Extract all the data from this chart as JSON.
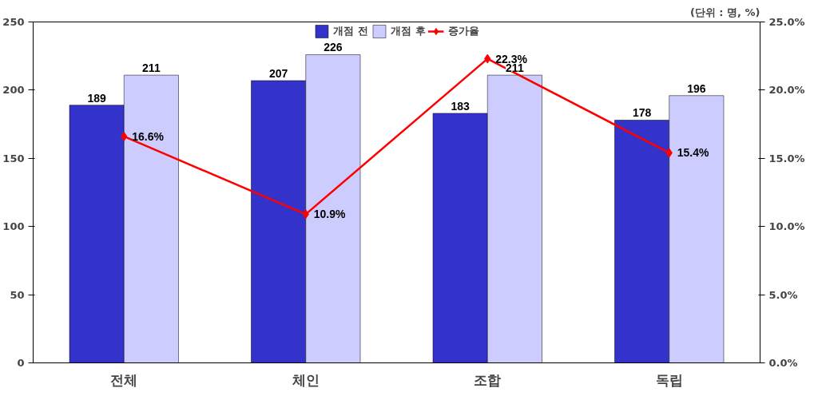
{
  "chart_data": {
    "type": "bar",
    "annotations": [
      "(단위 : 명, %)"
    ],
    "categories": [
      "전체",
      "체인",
      "조합",
      "독립"
    ],
    "series": [
      {
        "name": "개점 전",
        "color": "#3333cc",
        "values": [
          189,
          207,
          183,
          178
        ]
      },
      {
        "name": "개점 후",
        "color": "#ccccff",
        "values": [
          211,
          226,
          211,
          196
        ]
      },
      {
        "name": "증가율",
        "type": "line",
        "axis": "y2",
        "color": "#ff0000",
        "marker": "diamond",
        "values": [
          16.6,
          10.9,
          22.3,
          15.4
        ],
        "value_labels": [
          "16.6%",
          "10.9%",
          "22.3%",
          "15.4%"
        ]
      }
    ],
    "data_labels": true,
    "ylim": [
      0,
      250
    ],
    "yticks": [
      0,
      50,
      100,
      150,
      200,
      250
    ],
    "y2lim": [
      0,
      25
    ],
    "y2ticks": [
      {
        "value": 0,
        "label": "0.0%"
      },
      {
        "value": 5,
        "label": "5.0%"
      },
      {
        "value": 10,
        "label": "10.0%"
      },
      {
        "value": 15,
        "label": "15.0%"
      },
      {
        "value": 20,
        "label": "20.0%"
      },
      {
        "value": 25,
        "label": "25.0%"
      }
    ],
    "grid": false,
    "legend": "top"
  }
}
